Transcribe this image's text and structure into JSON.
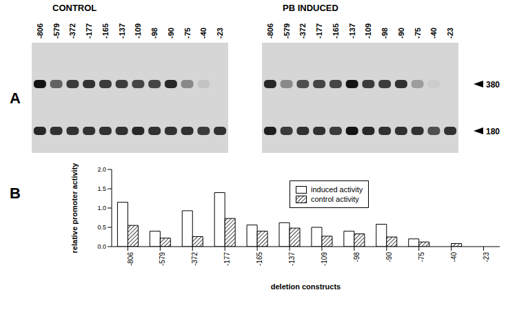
{
  "panel_a": {
    "label": "A",
    "gels": [
      {
        "title": "CONTROL",
        "lanes": [
          "-806",
          "-579",
          "-372",
          "-177",
          "-165",
          "-137",
          "-109",
          "-98",
          "-90",
          "-75",
          "-40",
          "-23"
        ],
        "band_380": [
          1.0,
          0.6,
          0.8,
          0.85,
          0.8,
          0.8,
          0.75,
          0.75,
          0.9,
          0.4,
          0.1,
          0.0
        ],
        "band_180": [
          0.9,
          0.85,
          0.85,
          0.85,
          0.85,
          0.85,
          0.9,
          0.85,
          0.85,
          0.85,
          0.8,
          0.85
        ]
      },
      {
        "title": "PB INDUCED",
        "lanes": [
          "-806",
          "-579",
          "-372",
          "-177",
          "-165",
          "-137",
          "-109",
          "-98",
          "-90",
          "-75",
          "-40",
          "-23"
        ],
        "band_380": [
          0.9,
          0.4,
          0.7,
          0.75,
          0.75,
          1.0,
          0.8,
          0.8,
          0.85,
          0.3,
          0.05,
          0.0
        ],
        "band_180": [
          0.95,
          0.8,
          0.85,
          0.85,
          0.8,
          1.0,
          0.9,
          0.85,
          0.85,
          0.85,
          0.7,
          0.85
        ]
      }
    ],
    "markers": [
      380,
      180
    ]
  },
  "chart_data": {
    "label": "B",
    "type": "bar",
    "categories": [
      "-806",
      "-579",
      "-372",
      "-177",
      "-165",
      "-137",
      "-109",
      "-98",
      "-90",
      "-75",
      "-40",
      "-23"
    ],
    "series": [
      {
        "name": "induced activity",
        "color": "#ffffff",
        "values": [
          1.15,
          0.4,
          0.93,
          1.4,
          0.56,
          0.62,
          0.5,
          0.4,
          0.58,
          0.2,
          0.0,
          0.0
        ]
      },
      {
        "name": "control activity",
        "color": "#444444",
        "values": [
          0.55,
          0.22,
          0.26,
          0.73,
          0.4,
          0.48,
          0.27,
          0.33,
          0.25,
          0.12,
          0.08,
          0.0
        ]
      }
    ],
    "x_label": "deletion constructs",
    "y_label": "relative promoter activity",
    "ylim": [
      0,
      2
    ],
    "yticks": [
      {
        "value": 0,
        "label": "0.0"
      },
      0.5,
      {
        "value": 1,
        "label": "1.0"
      },
      1.5,
      {
        "value": 2,
        "label": "2.0"
      }
    ],
    "grid": false,
    "legend": "top"
  }
}
